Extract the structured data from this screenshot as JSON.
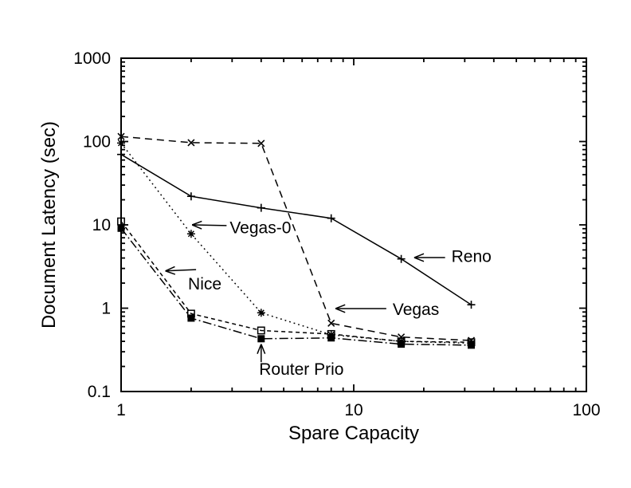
{
  "figure": {
    "background": "#ffffff",
    "ink": "#000000"
  },
  "chart_data": {
    "type": "line",
    "title": "",
    "xlabel": "Spare Capacity",
    "ylabel": "Document Latency (sec)",
    "x_scale": "log",
    "y_scale": "log",
    "xlim": [
      1,
      100
    ],
    "ylim": [
      0.1,
      1000
    ],
    "x_ticks": [
      1,
      10,
      100
    ],
    "x_tick_labels": [
      "1",
      "10",
      "100"
    ],
    "y_ticks": [
      0.1,
      1,
      10,
      100,
      1000
    ],
    "y_tick_labels": [
      "0.1",
      "1",
      "10",
      "100",
      "1000"
    ],
    "grid": "off",
    "legend": "none (series labeled by arrow annotations)",
    "x": [
      1,
      2,
      4,
      8,
      16,
      32
    ],
    "series": [
      {
        "name": "Reno",
        "marker": "plus",
        "line": "solid",
        "values": [
          70,
          22,
          16,
          12,
          3.9,
          1.1
        ]
      },
      {
        "name": "Vegas",
        "marker": "cross",
        "line": "dash",
        "values": [
          115,
          97,
          95,
          0.66,
          0.45,
          0.41
        ]
      },
      {
        "name": "Vegas-0",
        "marker": "asterisk",
        "line": "dot",
        "values": [
          96,
          7.8,
          0.88,
          0.48,
          0.4,
          0.38
        ]
      },
      {
        "name": "Nice",
        "marker": "open-square",
        "line": "short-dash",
        "values": [
          11,
          0.86,
          0.54,
          0.49,
          0.4,
          0.39
        ]
      },
      {
        "name": "Router Prio",
        "marker": "filled-square",
        "line": "dash-dot",
        "values": [
          9.1,
          0.76,
          0.43,
          0.44,
          0.37,
          0.36
        ]
      }
    ],
    "annotations": [
      {
        "text": "Vegas-0",
        "text_x": 2.93,
        "text_y": 7.9,
        "arrow_from_x": 2.84,
        "arrow_from_y": 9.8,
        "arrow_to_x": 2.02,
        "arrow_to_y": 10.0
      },
      {
        "text": "Nice",
        "text_x": 1.94,
        "text_y": 1.68,
        "arrow_from_x": 2.1,
        "arrow_from_y": 2.9,
        "arrow_to_x": 1.55,
        "arrow_to_y": 2.8
      },
      {
        "text": "Reno",
        "text_x": 26.3,
        "text_y": 3.6,
        "arrow_from_x": 24.7,
        "arrow_from_y": 4.05,
        "arrow_to_x": 18.2,
        "arrow_to_y": 4.05
      },
      {
        "text": "Vegas",
        "text_x": 14.7,
        "text_y": 0.83,
        "arrow_from_x": 13.8,
        "arrow_from_y": 0.99,
        "arrow_to_x": 8.35,
        "arrow_to_y": 0.99
      },
      {
        "text": "Router Prio",
        "text_x": 3.92,
        "text_y": 0.159,
        "arrow_from_x": 4.0,
        "arrow_from_y": 0.225,
        "arrow_to_x": 4.0,
        "arrow_to_y": 0.37
      }
    ]
  }
}
